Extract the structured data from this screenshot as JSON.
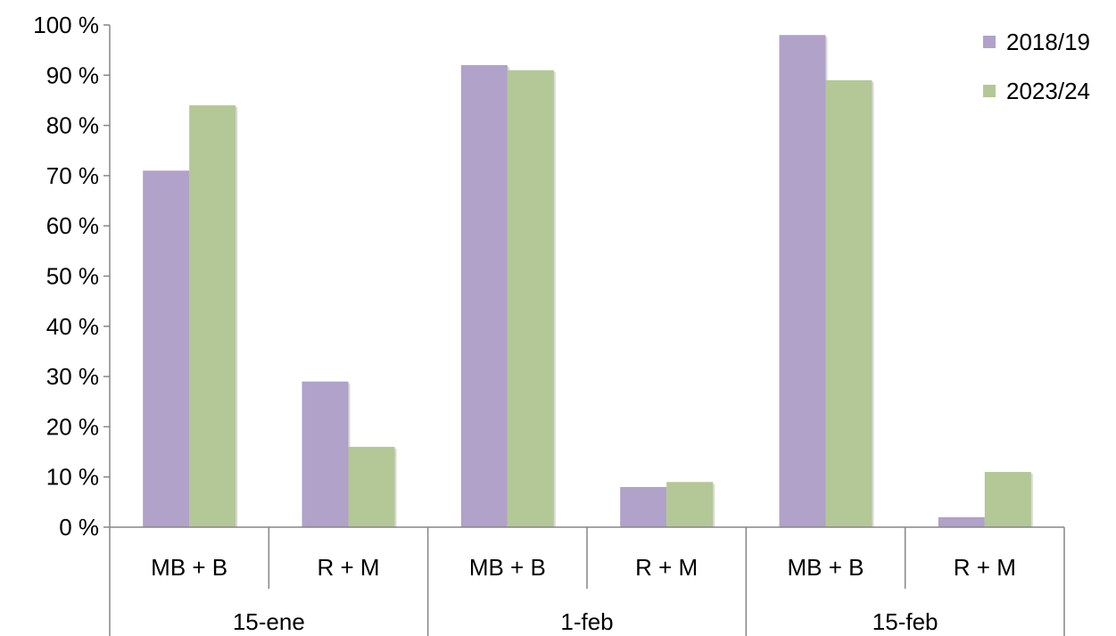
{
  "chart_data": {
    "type": "bar",
    "title": "",
    "xlabel": "",
    "ylabel": "",
    "ylim": [
      0,
      100
    ],
    "y_ticks": [
      0,
      10,
      20,
      30,
      40,
      50,
      60,
      70,
      80,
      90,
      100
    ],
    "y_tick_suffix": " %",
    "grid": false,
    "legend_position": "top-right",
    "groups": [
      {
        "label": "15-ene",
        "categories": [
          "MB + B",
          "R + M"
        ]
      },
      {
        "label": "1-feb",
        "categories": [
          "MB + B",
          "R + M"
        ]
      },
      {
        "label": "15-feb",
        "categories": [
          "MB + B",
          "R + M"
        ]
      }
    ],
    "categories": [
      "MB + B",
      "R + M",
      "MB + B",
      "R + M",
      "MB + B",
      "R + M"
    ],
    "series": [
      {
        "name": "2018/19",
        "color": "#b0a2c8",
        "values": [
          71,
          29,
          92,
          8,
          98,
          2
        ]
      },
      {
        "name": "2023/24",
        "color": "#b3c896",
        "values": [
          84,
          16,
          91,
          9,
          89,
          11
        ]
      }
    ]
  }
}
